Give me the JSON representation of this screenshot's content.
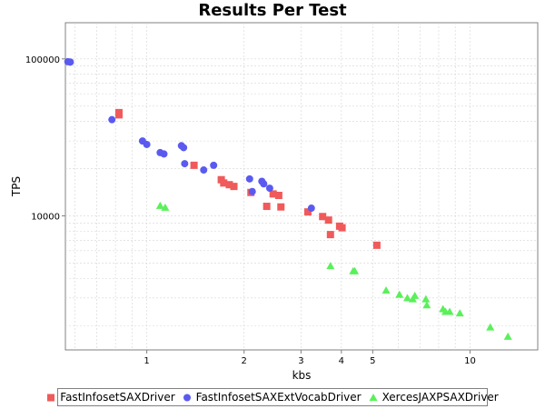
{
  "chart_data": {
    "type": "scatter",
    "title": "Results Per Test",
    "xlabel": "kbs",
    "ylabel": "TPS",
    "x_scale": "log",
    "y_scale": "log",
    "xlim": [
      0.56,
      16.2
    ],
    "ylim": [
      1400,
      170000
    ],
    "x_ticks": [
      1,
      2,
      3,
      4,
      5,
      10
    ],
    "y_ticks": [
      10000,
      100000
    ],
    "x_tick_labels": [
      "1",
      "2",
      "3",
      "4",
      "5",
      "10"
    ],
    "y_tick_labels": [
      "10000",
      "100000"
    ],
    "grid": true,
    "legend_position": "bottom",
    "series": [
      {
        "name": "FastInfosetSAXDriver",
        "marker": "square",
        "color": "#f05a5a",
        "points": [
          [
            0.82,
            44000
          ],
          [
            0.82,
            45500
          ],
          [
            1.4,
            21000
          ],
          [
            1.7,
            17000
          ],
          [
            1.73,
            16200
          ],
          [
            1.8,
            15800
          ],
          [
            1.86,
            15400
          ],
          [
            2.1,
            14100
          ],
          [
            2.35,
            11500
          ],
          [
            2.46,
            13800
          ],
          [
            2.56,
            13500
          ],
          [
            2.6,
            11400
          ],
          [
            3.15,
            10600
          ],
          [
            3.5,
            9900
          ],
          [
            3.65,
            9400
          ],
          [
            3.7,
            7600
          ],
          [
            3.95,
            8600
          ],
          [
            4.02,
            8400
          ],
          [
            5.15,
            6500
          ]
        ]
      },
      {
        "name": "FastInfosetSAXExtVocabDriver",
        "marker": "circle",
        "color": "#5a5af0",
        "points": [
          [
            0.57,
            96000
          ],
          [
            0.58,
            95500
          ],
          [
            0.78,
            41000
          ],
          [
            0.97,
            30000
          ],
          [
            1.0,
            28500
          ],
          [
            1.1,
            25300
          ],
          [
            1.13,
            24800
          ],
          [
            1.28,
            28000
          ],
          [
            1.3,
            27200
          ],
          [
            1.31,
            21500
          ],
          [
            1.5,
            19600
          ],
          [
            1.61,
            21000
          ],
          [
            2.08,
            17200
          ],
          [
            2.12,
            14300
          ],
          [
            2.27,
            16600
          ],
          [
            2.3,
            16000
          ],
          [
            2.4,
            15000
          ],
          [
            3.23,
            11200
          ]
        ]
      },
      {
        "name": "XercesJAXPSAXDriver",
        "marker": "triangle",
        "color": "#5af05a",
        "points": [
          [
            1.1,
            11600
          ],
          [
            1.14,
            11300
          ],
          [
            3.7,
            4800
          ],
          [
            4.35,
            4450
          ],
          [
            4.4,
            4450
          ],
          [
            5.5,
            3350
          ],
          [
            6.05,
            3150
          ],
          [
            6.4,
            3000
          ],
          [
            6.65,
            2950
          ],
          [
            6.75,
            3100
          ],
          [
            7.3,
            2950
          ],
          [
            7.35,
            2700
          ],
          [
            8.25,
            2550
          ],
          [
            8.4,
            2450
          ],
          [
            8.65,
            2450
          ],
          [
            9.3,
            2400
          ],
          [
            11.55,
            1950
          ],
          [
            13.1,
            1700
          ]
        ]
      }
    ]
  }
}
